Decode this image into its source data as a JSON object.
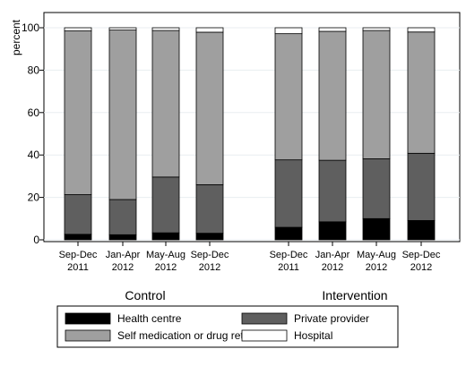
{
  "chart_data": {
    "type": "bar",
    "stacked": true,
    "ylabel": "percent",
    "ylim": [
      0,
      100
    ],
    "yticks": [
      0,
      20,
      40,
      60,
      80,
      100
    ],
    "grid": true,
    "legend_position": "bottom",
    "panels": [
      {
        "label": "Control",
        "categories": [
          [
            "Sep-Dec",
            "2011"
          ],
          [
            "Jan-Apr",
            "2012"
          ],
          [
            "May-Aug",
            "2012"
          ],
          [
            "Sep-Dec",
            "2012"
          ]
        ],
        "series": [
          {
            "name": "Health centre",
            "color": "#000000",
            "values": [
              2.6,
              2.4,
              3.3,
              3.1
            ]
          },
          {
            "name": "Private provider",
            "color": "#5f5f5f",
            "values": [
              18.7,
              16.6,
              26.3,
              22.9
            ]
          },
          {
            "name": "Self medication or drug retailer",
            "color": "#9f9f9f",
            "values": [
              77.2,
              79.9,
              69.1,
              71.9
            ]
          },
          {
            "name": "Hospital",
            "color": "#ffffff",
            "values": [
              1.5,
              1.1,
              1.3,
              2.1
            ]
          }
        ]
      },
      {
        "label": "Intervention",
        "categories": [
          [
            "Sep-Dec",
            "2011"
          ],
          [
            "Jan-Apr",
            "2012"
          ],
          [
            "May-Aug",
            "2012"
          ],
          [
            "Sep-Dec",
            "2012"
          ]
        ],
        "series": [
          {
            "name": "Health centre",
            "color": "#000000",
            "values": [
              5.9,
              8.5,
              10.0,
              9.1
            ]
          },
          {
            "name": "Private provider",
            "color": "#5f5f5f",
            "values": [
              31.8,
              29.0,
              28.2,
              31.7
            ]
          },
          {
            "name": "Self medication or drug retailer",
            "color": "#9f9f9f",
            "values": [
              59.5,
              60.8,
              60.5,
              57.2
            ]
          },
          {
            "name": "Hospital",
            "color": "#ffffff",
            "values": [
              2.8,
              1.7,
              1.3,
              2.0
            ]
          }
        ]
      }
    ],
    "legend": [
      {
        "name": "Health centre",
        "color": "#000000"
      },
      {
        "name": "Private provider",
        "color": "#5f5f5f"
      },
      {
        "name": "Self medication or drug retailer",
        "color": "#9f9f9f"
      },
      {
        "name": "Hospital",
        "color": "#ffffff"
      }
    ]
  }
}
